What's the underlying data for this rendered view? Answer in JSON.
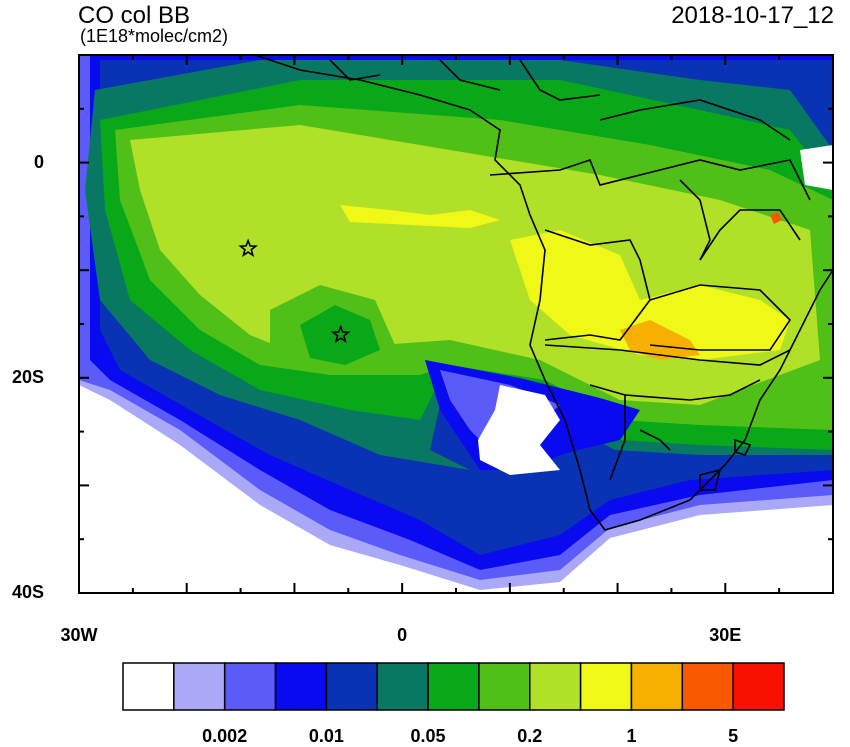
{
  "map": {
    "title": "CO col BB",
    "units": "(1E18*molec/cm2)",
    "datetime": "2018-10-17_12",
    "lat_ticks": [
      {
        "value": 0,
        "label": "0"
      },
      {
        "value": -20,
        "label": "20S"
      },
      {
        "value": -40,
        "label": "40S"
      }
    ],
    "lon_ticks": [
      {
        "value": -30,
        "label": "30W"
      },
      {
        "value": 0,
        "label": "0"
      },
      {
        "value": 30,
        "label": "30E"
      }
    ],
    "extent": {
      "lon_min": -30,
      "lon_max": 40,
      "lat_min": -40,
      "lat_max": 10
    },
    "markers": [
      {
        "lon": -14.3,
        "lat": -8.0,
        "symbol": "star"
      },
      {
        "lon": -5.7,
        "lat": -16.0,
        "symbol": "star"
      }
    ]
  },
  "colorbar": {
    "colors": [
      "#ffffff",
      "#a9a9f7",
      "#5b5bf9",
      "#0a0af0",
      "#0a32b4",
      "#087862",
      "#08a818",
      "#50c018",
      "#b0e028",
      "#f0f818",
      "#f8b000",
      "#f85800",
      "#f81000"
    ],
    "labels": [
      {
        "after_box": 2,
        "label": "0.002"
      },
      {
        "after_box": 4,
        "label": "0.01"
      },
      {
        "after_box": 6,
        "label": "0.05"
      },
      {
        "after_box": 8,
        "label": "0.2"
      },
      {
        "after_box": 10,
        "label": "1"
      },
      {
        "after_box": 12,
        "label": "5"
      }
    ]
  }
}
